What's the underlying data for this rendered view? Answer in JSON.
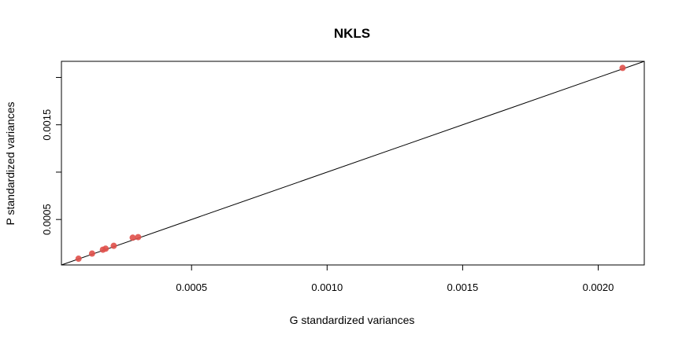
{
  "chart_data": {
    "type": "scatter",
    "title": "NKLS",
    "xlabel": "G standardized variances",
    "ylabel": "P standardized variances",
    "xlim": [
      2e-05,
      0.00217
    ],
    "ylim": [
      2e-05,
      0.00217
    ],
    "x_ticks": [
      0.0005,
      0.001,
      0.0015,
      0.002
    ],
    "x_tick_labels": [
      "0.0005",
      "0.0010",
      "0.0015",
      "0.0020"
    ],
    "y_ticks": [
      0.0005,
      0.001,
      0.0015,
      0.002
    ],
    "y_tick_labels": [
      "0.0005",
      "",
      "0.0015",
      ""
    ],
    "grid": false,
    "reference_line": {
      "type": "identity",
      "slope": 1,
      "intercept": 0,
      "color": "#000000"
    },
    "point_color": "#e0504a",
    "points": [
      {
        "x": 8.3e-05,
        "y": 8.6e-05
      },
      {
        "x": 0.000133,
        "y": 0.00014
      },
      {
        "x": 0.000173,
        "y": 0.000181
      },
      {
        "x": 0.000183,
        "y": 0.000192
      },
      {
        "x": 0.000213,
        "y": 0.000222
      },
      {
        "x": 0.000283,
        "y": 0.000308
      },
      {
        "x": 0.000303,
        "y": 0.000314
      },
      {
        "x": 0.00209,
        "y": 0.0021
      }
    ]
  }
}
